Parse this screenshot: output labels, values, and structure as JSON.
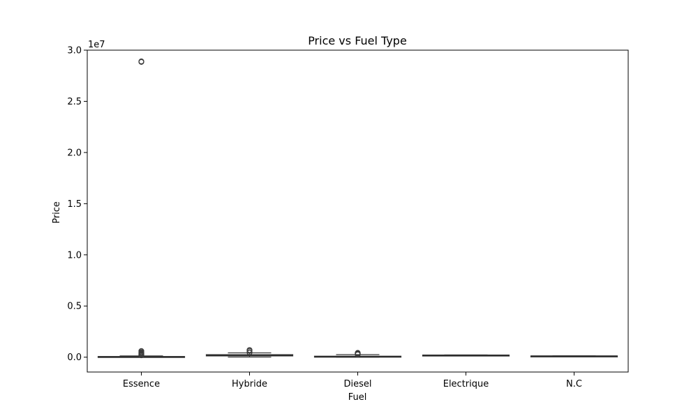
{
  "chart_data": {
    "type": "box",
    "title": "Price vs Fuel Type",
    "xlabel": "Fuel",
    "ylabel": "Price",
    "y_scale_label": "1e7",
    "y_unit": 10000000,
    "ylim": [
      -1450000,
      30000000
    ],
    "yticks": [
      0,
      5000000,
      10000000,
      15000000,
      20000000,
      25000000,
      30000000
    ],
    "ytick_labels": [
      "0.0",
      "0.5",
      "1.0",
      "1.5",
      "2.0",
      "2.5",
      "3.0"
    ],
    "categories": [
      "Essence",
      "Hybride",
      "Diesel",
      "Electrique",
      "N.C"
    ],
    "box_color": "#3a3a3a",
    "boxes": [
      {
        "category": "Essence",
        "whislo": 0,
        "q1": 20000,
        "med": 40000,
        "q3": 70000,
        "whishi": 130000,
        "fliers": [
          28850000,
          28900000,
          600000,
          500000,
          420000,
          350000,
          300000,
          250000,
          200000,
          180000
        ]
      },
      {
        "category": "Hybride",
        "whislo": 10000,
        "q1": 120000,
        "med": 160000,
        "q3": 250000,
        "whishi": 420000,
        "fliers": [
          700000,
          620000,
          480000,
          450000
        ]
      },
      {
        "category": "Diesel",
        "whislo": 0,
        "q1": 25000,
        "med": 50000,
        "q3": 100000,
        "whishi": 250000,
        "fliers": [
          420000,
          380000,
          330000,
          300000,
          270000
        ]
      },
      {
        "category": "Electrique",
        "whislo": 180000,
        "q1": 190000,
        "med": 200000,
        "q3": 210000,
        "whishi": 220000,
        "fliers": []
      },
      {
        "category": "N.C",
        "whislo": 110000,
        "q1": 115000,
        "med": 120000,
        "q3": 125000,
        "whishi": 130000,
        "fliers": []
      }
    ]
  }
}
